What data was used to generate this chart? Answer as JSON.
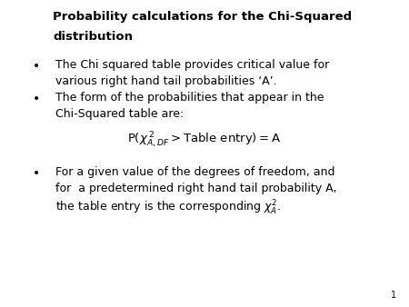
{
  "title_line1": "Probability calculations for the Chi-Squared",
  "title_line2": "distribution",
  "bullet1_line1": "The Chi squared table provides critical value for",
  "bullet1_line2": "various right hand tail probabilities ‘A’.",
  "bullet2_line1": "The form of the probabilities that appear in the",
  "bullet2_line2": "Chi-Squared table are:",
  "bullet3_line1": "For a given value of the degrees of freedom, and",
  "bullet3_line2": "for  a predetermined right hand tail probability A,",
  "bullet3_line3": "the table entry is the corresponding $\\chi^{2}_{A}$.",
  "page_number": "1",
  "bg_color": "#ffffff",
  "text_color": "#000000",
  "title_fontsize": 9.5,
  "body_fontsize": 9.0,
  "formula_fontsize": 9.5
}
